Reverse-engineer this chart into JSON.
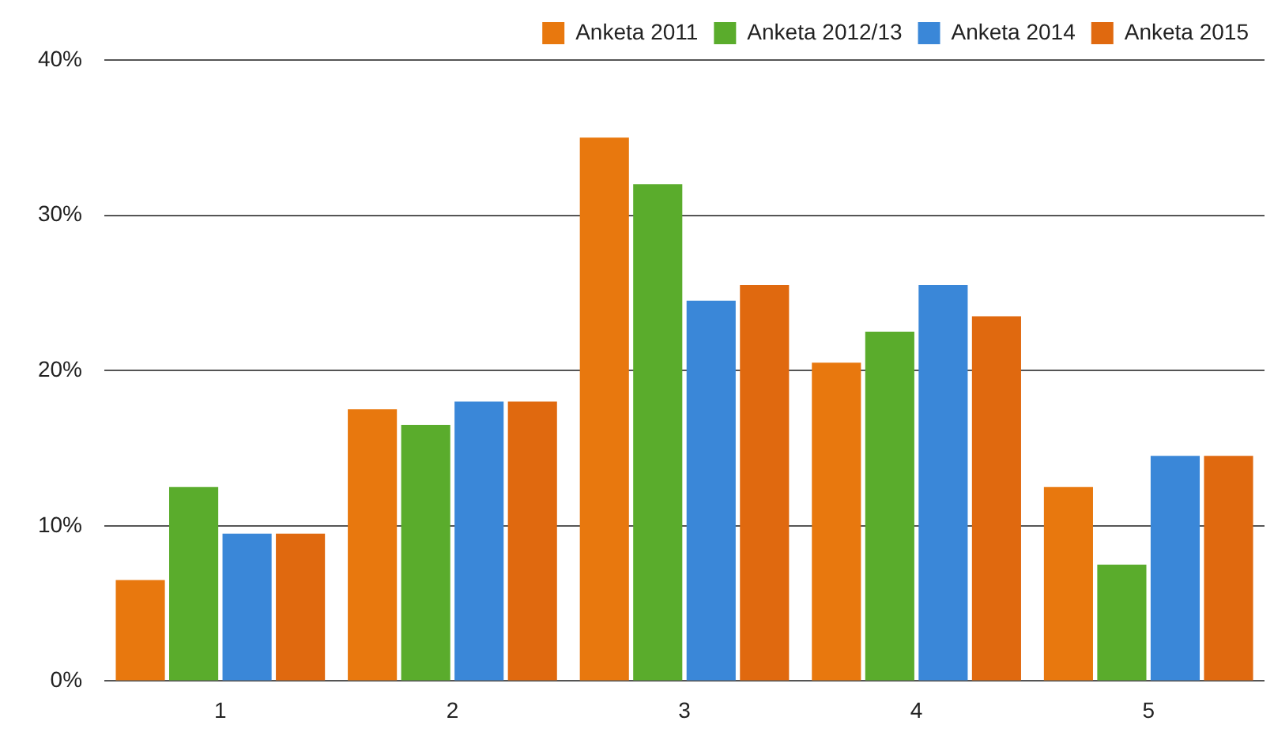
{
  "chart_data": {
    "type": "bar",
    "categories": [
      "1",
      "2",
      "3",
      "4",
      "5"
    ],
    "series": [
      {
        "name": "Anketa 2011",
        "color": "#e8780e",
        "values": [
          6.5,
          17.5,
          35,
          20.5,
          12.5
        ]
      },
      {
        "name": "Anketa 2012/13",
        "color": "#5aac2c",
        "values": [
          12.5,
          16.5,
          32,
          22.5,
          7.5
        ]
      },
      {
        "name": "Anketa 2014",
        "color": "#3a87d8",
        "values": [
          9.5,
          18,
          24.5,
          25.5,
          14.5
        ]
      },
      {
        "name": "Anketa 2015",
        "color": "#e0690f",
        "values": [
          9.5,
          18,
          25.5,
          23.5,
          14.5
        ]
      }
    ],
    "ylim": [
      0,
      40
    ],
    "yticks": [
      {
        "value": 0,
        "label": "0%"
      },
      {
        "value": 10,
        "label": "10%"
      },
      {
        "value": 20,
        "label": "20%"
      },
      {
        "value": 30,
        "label": "30%"
      },
      {
        "value": 40,
        "label": "40%"
      }
    ],
    "grid": "y",
    "legend": "top right"
  }
}
